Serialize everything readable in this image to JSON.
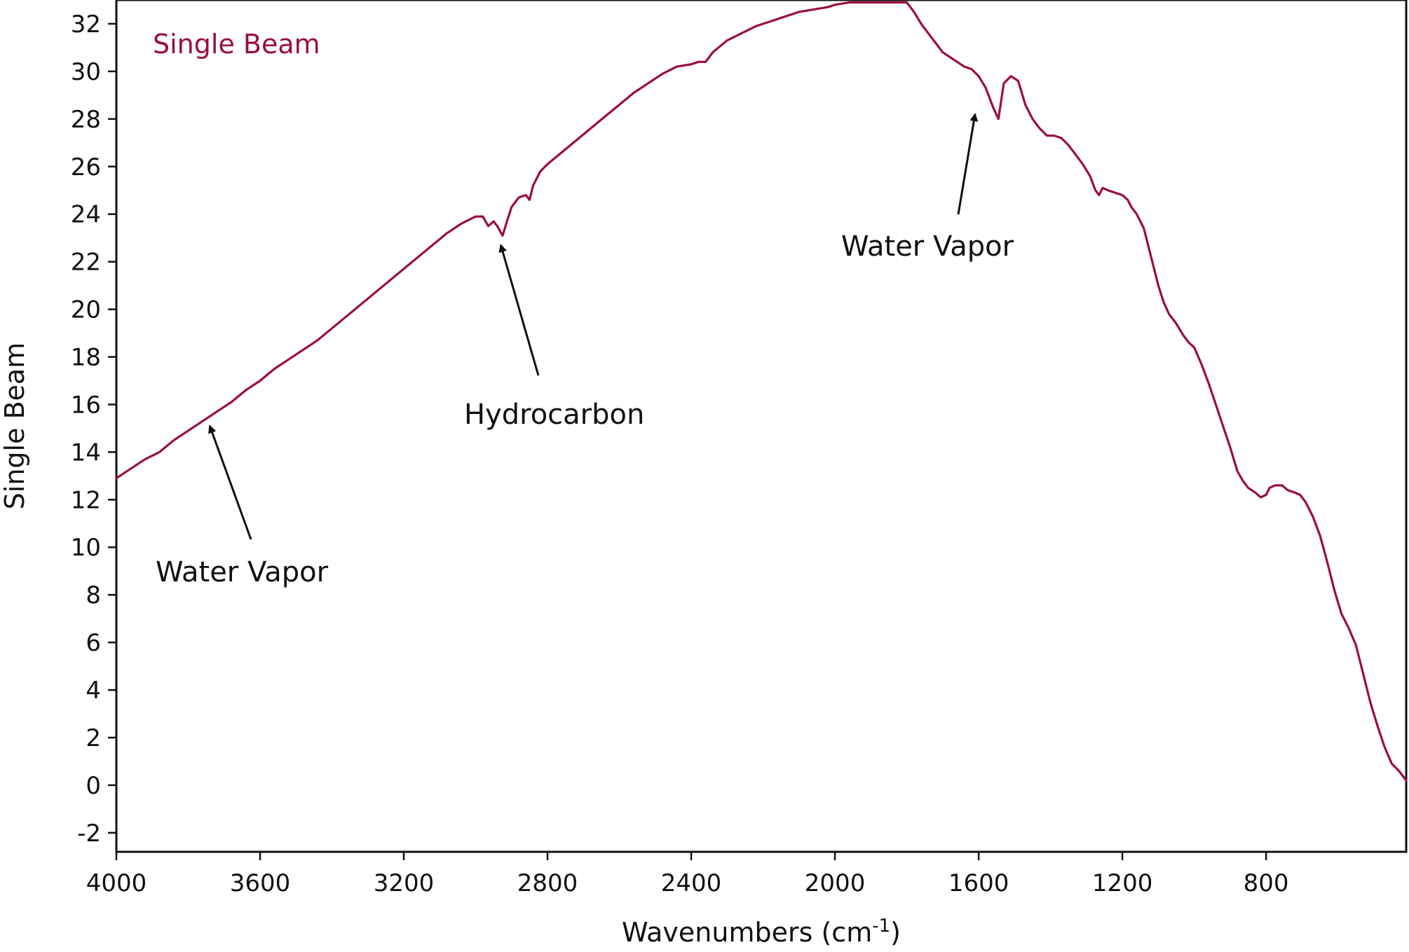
{
  "colors": {
    "series": "#9b0f38",
    "axis": "#111111",
    "arrow": "#111111"
  },
  "chart_data": {
    "type": "line",
    "title": "",
    "xlabel": "Wavenumbers (cm",
    "xlabel_sup": "-1",
    "xlabel_close": ")",
    "ylabel": "Single Beam",
    "xlim": [
      4000,
      410
    ],
    "ylim": [
      -2.8,
      33
    ],
    "x_ticks": [
      4000,
      3600,
      3200,
      2800,
      2400,
      2000,
      1600,
      1200,
      800
    ],
    "y_ticks": [
      -2,
      0,
      2,
      4,
      6,
      8,
      10,
      12,
      14,
      16,
      18,
      20,
      22,
      24,
      26,
      28,
      30,
      32
    ],
    "grid": false,
    "legend": {
      "position": "top-left"
    },
    "series": [
      {
        "name": "Single Beam",
        "points": [
          [
            4000,
            12.9
          ],
          [
            3960,
            13.3
          ],
          [
            3920,
            13.7
          ],
          [
            3880,
            14.0
          ],
          [
            3840,
            14.5
          ],
          [
            3800,
            14.9
          ],
          [
            3760,
            15.3
          ],
          [
            3720,
            15.7
          ],
          [
            3680,
            16.1
          ],
          [
            3640,
            16.6
          ],
          [
            3600,
            17.0
          ],
          [
            3560,
            17.5
          ],
          [
            3520,
            17.9
          ],
          [
            3480,
            18.3
          ],
          [
            3440,
            18.7
          ],
          [
            3400,
            19.2
          ],
          [
            3360,
            19.7
          ],
          [
            3320,
            20.2
          ],
          [
            3280,
            20.7
          ],
          [
            3240,
            21.2
          ],
          [
            3200,
            21.7
          ],
          [
            3160,
            22.2
          ],
          [
            3120,
            22.7
          ],
          [
            3080,
            23.2
          ],
          [
            3040,
            23.6
          ],
          [
            3000,
            23.9
          ],
          [
            2980,
            23.9
          ],
          [
            2965,
            23.5
          ],
          [
            2950,
            23.7
          ],
          [
            2940,
            23.5
          ],
          [
            2925,
            23.1
          ],
          [
            2915,
            23.6
          ],
          [
            2900,
            24.3
          ],
          [
            2880,
            24.7
          ],
          [
            2860,
            24.8
          ],
          [
            2850,
            24.6
          ],
          [
            2840,
            25.2
          ],
          [
            2820,
            25.8
          ],
          [
            2800,
            26.1
          ],
          [
            2760,
            26.6
          ],
          [
            2720,
            27.1
          ],
          [
            2680,
            27.6
          ],
          [
            2640,
            28.1
          ],
          [
            2600,
            28.6
          ],
          [
            2560,
            29.1
          ],
          [
            2520,
            29.5
          ],
          [
            2480,
            29.9
          ],
          [
            2440,
            30.2
          ],
          [
            2400,
            30.3
          ],
          [
            2380,
            30.4
          ],
          [
            2360,
            30.4
          ],
          [
            2340,
            30.8
          ],
          [
            2300,
            31.3
          ],
          [
            2260,
            31.6
          ],
          [
            2220,
            31.9
          ],
          [
            2180,
            32.1
          ],
          [
            2140,
            32.3
          ],
          [
            2100,
            32.5
          ],
          [
            2060,
            32.6
          ],
          [
            2020,
            32.7
          ],
          [
            2000,
            32.8
          ],
          [
            1960,
            32.9
          ],
          [
            1920,
            32.9
          ],
          [
            1880,
            32.9
          ],
          [
            1840,
            32.9
          ],
          [
            1800,
            32.9
          ],
          [
            1780,
            32.5
          ],
          [
            1760,
            32.0
          ],
          [
            1740,
            31.6
          ],
          [
            1720,
            31.2
          ],
          [
            1700,
            30.8
          ],
          [
            1680,
            30.6
          ],
          [
            1660,
            30.4
          ],
          [
            1640,
            30.2
          ],
          [
            1620,
            30.1
          ],
          [
            1600,
            29.8
          ],
          [
            1580,
            29.3
          ],
          [
            1560,
            28.5
          ],
          [
            1545,
            28.0
          ],
          [
            1530,
            29.5
          ],
          [
            1510,
            29.8
          ],
          [
            1490,
            29.6
          ],
          [
            1470,
            28.6
          ],
          [
            1450,
            28.0
          ],
          [
            1430,
            27.6
          ],
          [
            1410,
            27.3
          ],
          [
            1390,
            27.3
          ],
          [
            1370,
            27.2
          ],
          [
            1350,
            26.9
          ],
          [
            1330,
            26.5
          ],
          [
            1310,
            26.1
          ],
          [
            1290,
            25.6
          ],
          [
            1275,
            25.0
          ],
          [
            1265,
            24.8
          ],
          [
            1255,
            25.1
          ],
          [
            1240,
            25.0
          ],
          [
            1220,
            24.9
          ],
          [
            1200,
            24.8
          ],
          [
            1185,
            24.6
          ],
          [
            1175,
            24.3
          ],
          [
            1160,
            24.0
          ],
          [
            1140,
            23.4
          ],
          [
            1120,
            22.2
          ],
          [
            1100,
            21.0
          ],
          [
            1085,
            20.3
          ],
          [
            1070,
            19.8
          ],
          [
            1050,
            19.4
          ],
          [
            1030,
            18.9
          ],
          [
            1015,
            18.6
          ],
          [
            1000,
            18.4
          ],
          [
            980,
            17.7
          ],
          [
            960,
            16.9
          ],
          [
            940,
            16.0
          ],
          [
            920,
            15.1
          ],
          [
            900,
            14.2
          ],
          [
            880,
            13.2
          ],
          [
            865,
            12.8
          ],
          [
            850,
            12.5
          ],
          [
            830,
            12.3
          ],
          [
            815,
            12.1
          ],
          [
            800,
            12.2
          ],
          [
            790,
            12.5
          ],
          [
            775,
            12.6
          ],
          [
            755,
            12.6
          ],
          [
            740,
            12.4
          ],
          [
            720,
            12.3
          ],
          [
            705,
            12.2
          ],
          [
            690,
            11.9
          ],
          [
            670,
            11.3
          ],
          [
            650,
            10.5
          ],
          [
            630,
            9.4
          ],
          [
            610,
            8.2
          ],
          [
            590,
            7.2
          ],
          [
            570,
            6.6
          ],
          [
            550,
            5.9
          ],
          [
            530,
            4.7
          ],
          [
            510,
            3.5
          ],
          [
            490,
            2.5
          ],
          [
            470,
            1.6
          ],
          [
            450,
            0.9
          ],
          [
            430,
            0.6
          ],
          [
            410,
            0.2
          ]
        ]
      }
    ],
    "annotations": [
      {
        "text": "Water Vapor",
        "target": [
          3740,
          15.1
        ]
      },
      {
        "text": "Hydrocarbon",
        "target": [
          2930,
          22.7
        ]
      },
      {
        "text": "Water Vapor",
        "target": [
          1610,
          28.2
        ]
      }
    ]
  }
}
